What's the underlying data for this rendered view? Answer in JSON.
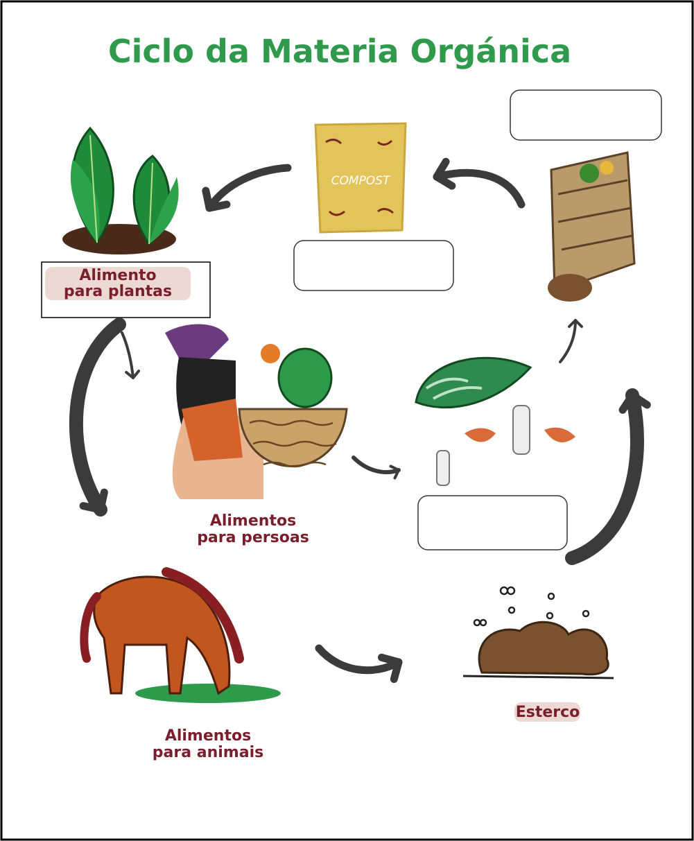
{
  "title": "Ciclo da Materia Orgánica",
  "compost_bag": "COMPOST",
  "labels": [
    {
      "lines": [
        "Alimento",
        "para plantas"
      ]
    },
    {
      "lines": [
        "Alimentos",
        "para persoas"
      ]
    },
    {
      "lines": [
        "Alimentos",
        "para animais"
      ]
    },
    {
      "lines": [
        "Esterco"
      ]
    }
  ]
}
